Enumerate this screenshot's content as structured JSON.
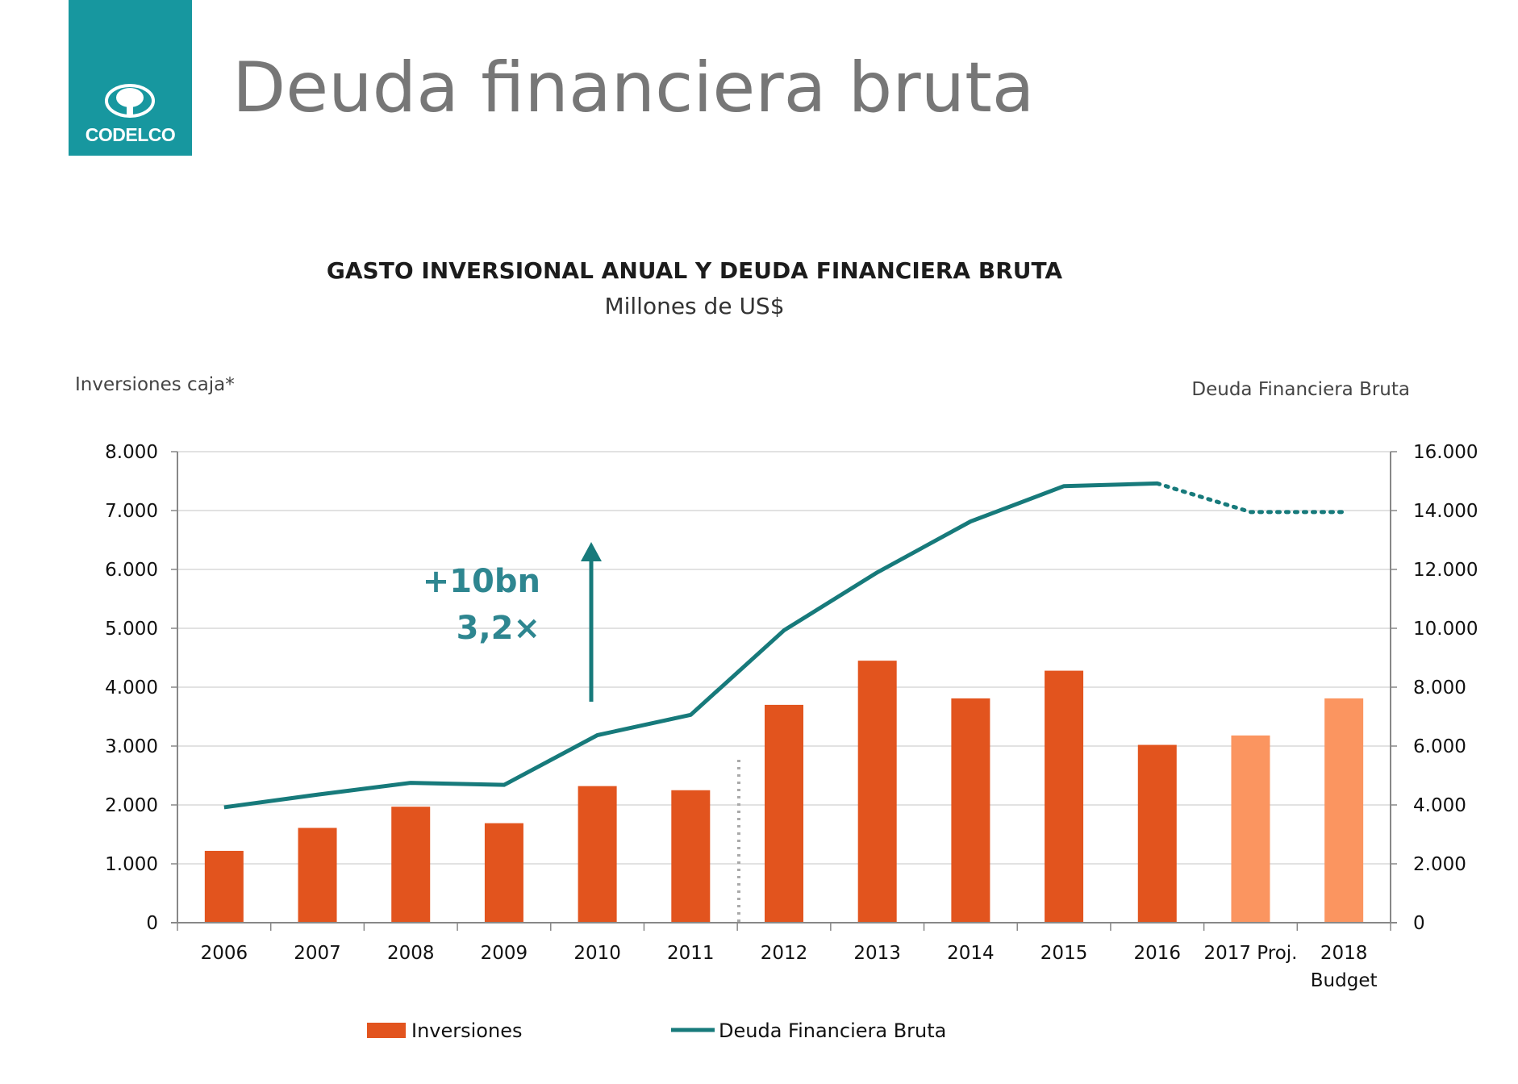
{
  "brand": {
    "name": "CODELCO",
    "color": "#17979f"
  },
  "slide_title": "Deuda financiera bruta",
  "chart_data": {
    "type": "bar",
    "title": "GASTO INVERSIONAL ANUAL Y DEUDA FINANCIERA BRUTA",
    "subtitle": "Millones de US$",
    "ylabel_left": "Inversiones caja*",
    "ylabel_right": "Deuda Financiera Bruta",
    "categories": [
      "2006",
      "2007",
      "2008",
      "2009",
      "2010",
      "2011",
      "2012",
      "2013",
      "2014",
      "2015",
      "2016",
      "2017 Proj.",
      "2018 Budget"
    ],
    "ylim_left": [
      0,
      8000
    ],
    "ylim_right": [
      0,
      16000
    ],
    "left_ticks": [
      "0",
      "1.000",
      "2.000",
      "3.000",
      "4.000",
      "5.000",
      "6.000",
      "7.000",
      "8.000"
    ],
    "right_ticks": [
      "0",
      "2.000",
      "4.000",
      "6.000",
      "8.000",
      "10.000",
      "12.000",
      "14.000",
      "16.000"
    ],
    "grid": true,
    "legend_position": "bottom",
    "series": [
      {
        "name": "Inversiones",
        "type": "bar",
        "axis": "left",
        "values": [
          1220,
          1610,
          1970,
          1690,
          2320,
          2250,
          3700,
          4450,
          3810,
          4280,
          3020,
          3180,
          3810
        ],
        "color": "#e2541e",
        "projected_color": "#fb9560",
        "projected_from_index": 11
      },
      {
        "name": "Deuda Financiera Bruta",
        "type": "line",
        "axis": "right",
        "values": [
          3920,
          4350,
          4750,
          4680,
          6370,
          7060,
          9930,
          11900,
          13630,
          14830,
          14920,
          13950,
          13950
        ],
        "color": "#177a7b",
        "dotted_from_index": 10
      }
    ],
    "annotations": [
      {
        "text": "+10bn",
        "color": "#2e8690"
      },
      {
        "text": "3,2×",
        "color": "#2e8690"
      }
    ]
  }
}
